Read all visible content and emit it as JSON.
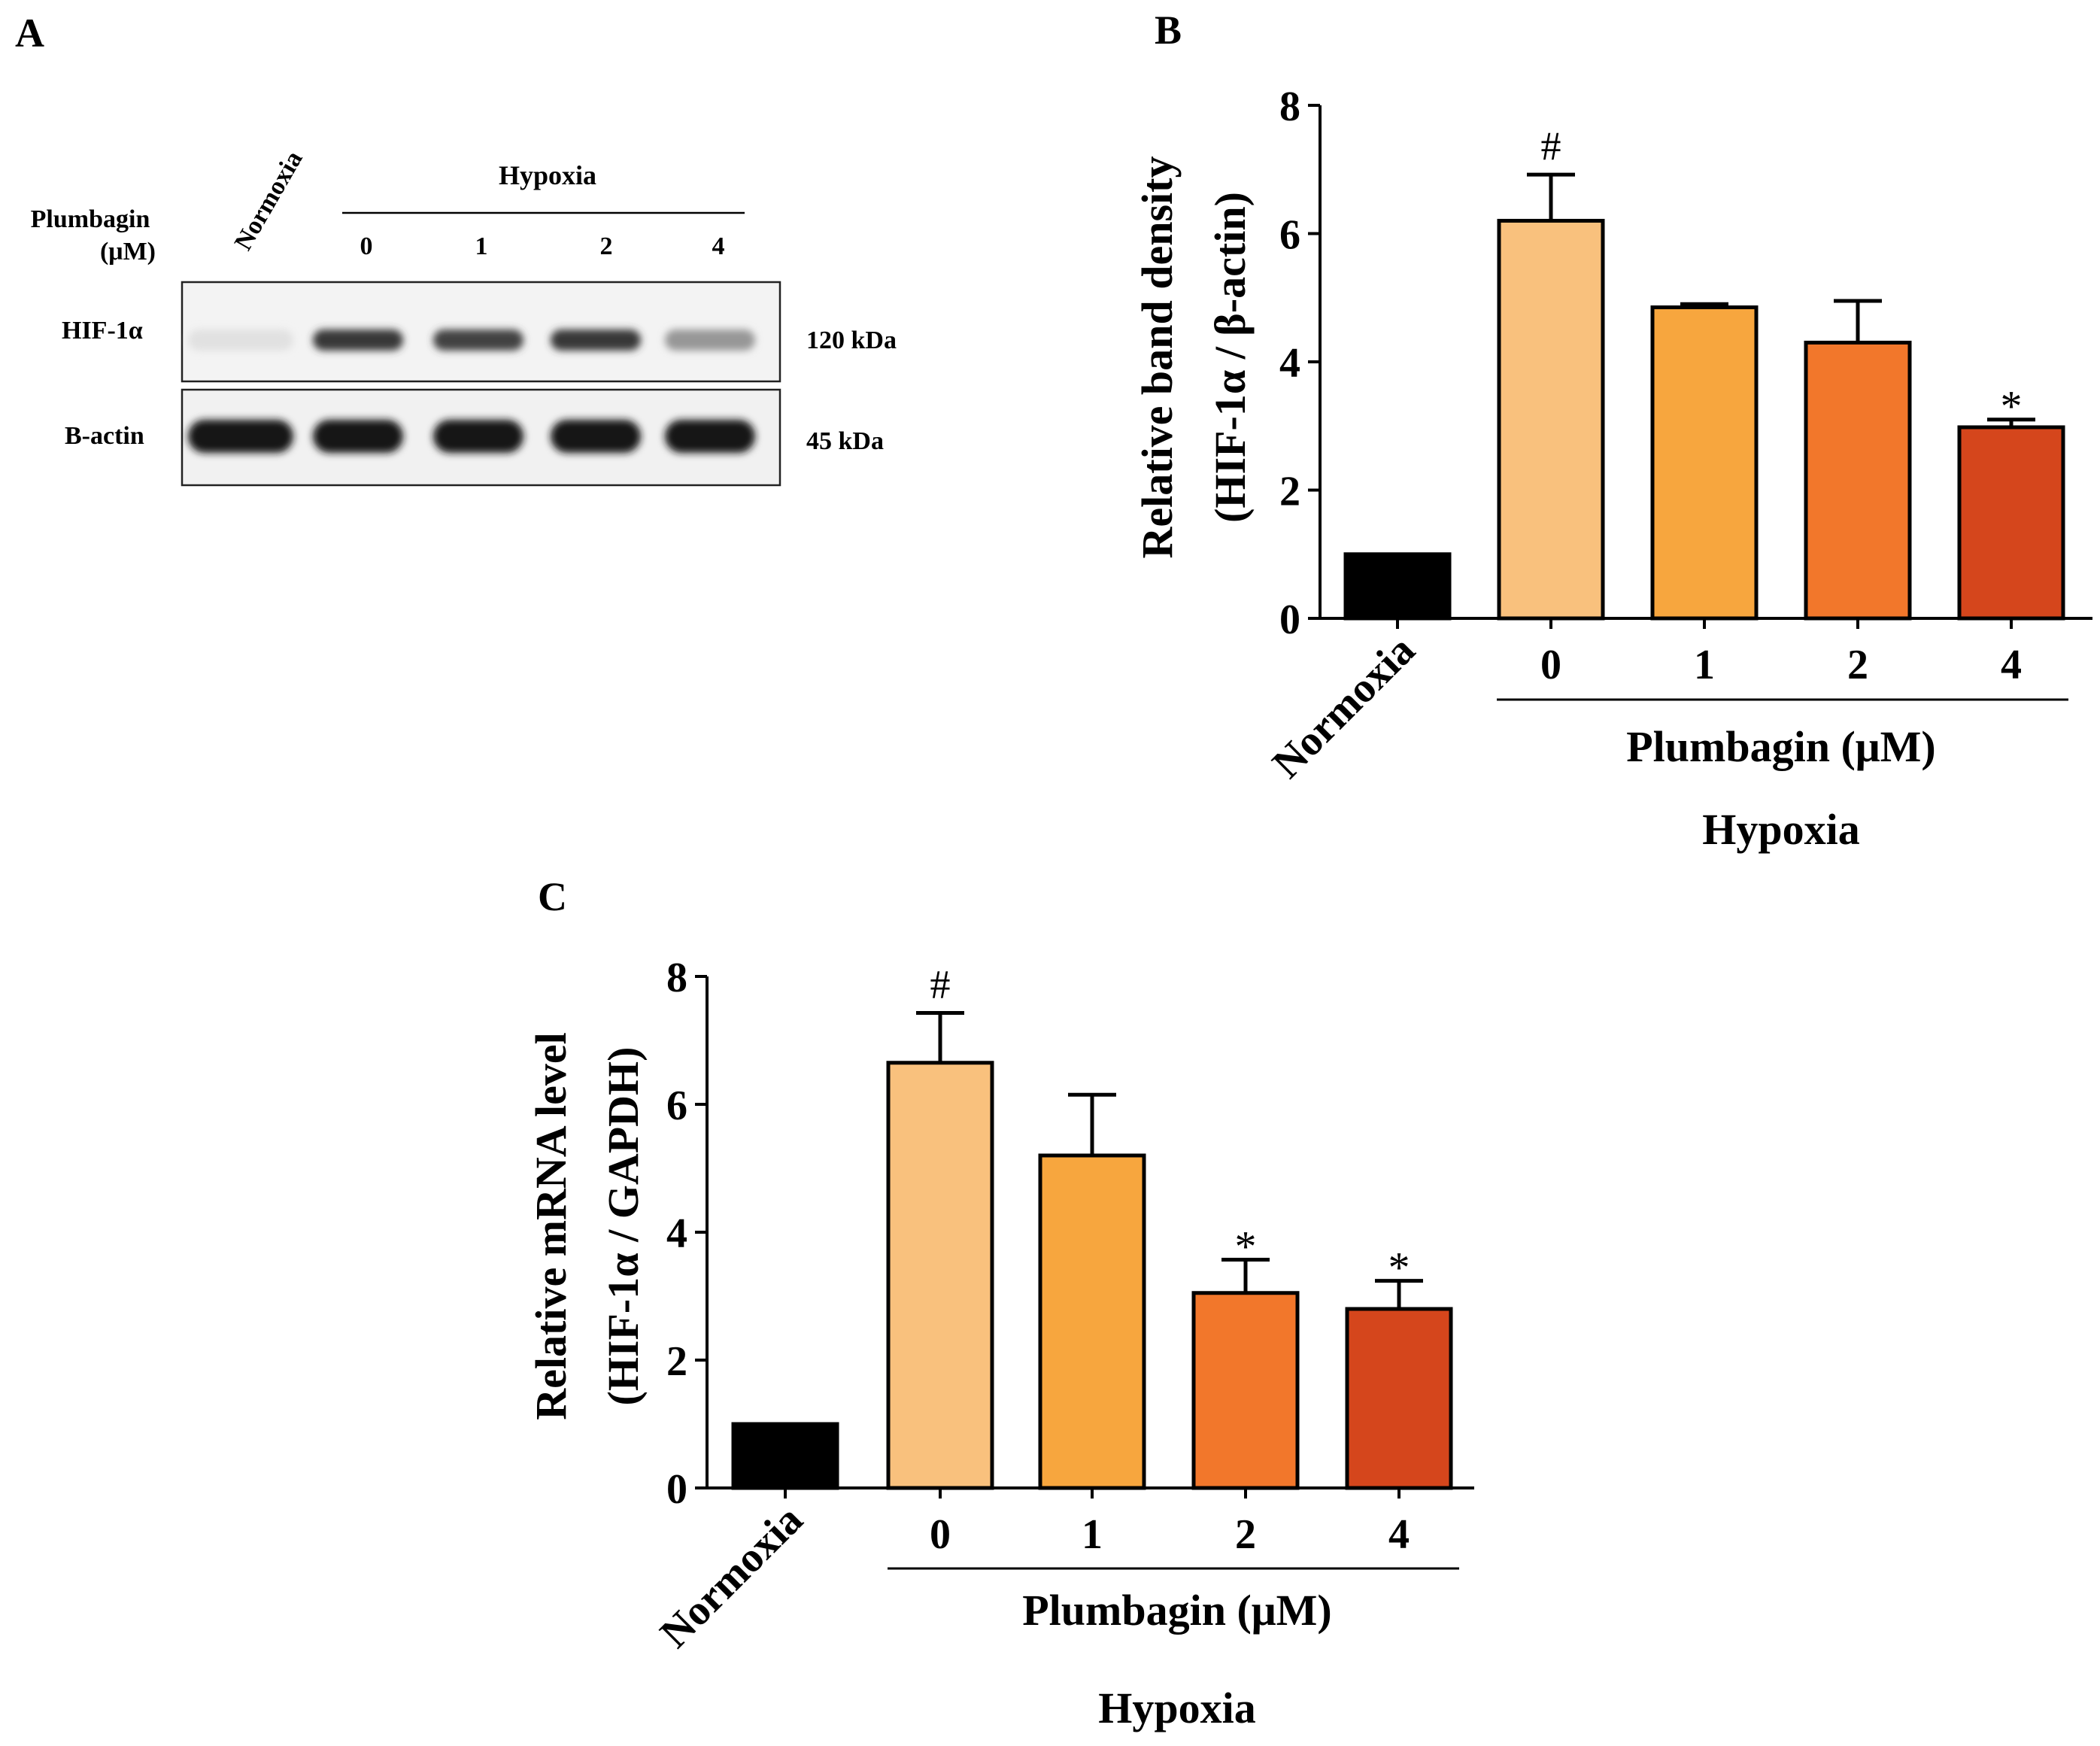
{
  "panel_a": {
    "label": "A",
    "treatment_label_line1": "Plumbagin",
    "treatment_label_line2": "(μM)",
    "normoxia_label": "Normoxia",
    "hypoxia_label": "Hypoxia",
    "doses": [
      "0",
      "1",
      "2",
      "4"
    ],
    "rows": [
      {
        "name": "HIF-1α",
        "mw": "120 kDa",
        "band_intensity": [
          0.05,
          0.85,
          0.8,
          0.85,
          0.4
        ]
      },
      {
        "name": "B-actin",
        "mw": "45 kDa",
        "band_intensity": [
          1,
          1,
          1,
          1,
          1
        ]
      }
    ]
  },
  "chart_data": [
    {
      "panel": "B",
      "type": "bar",
      "ylabel_line1": "Relative band density",
      "ylabel_line2": "(HIF-1α / β-actin)",
      "ylim": [
        0,
        8
      ],
      "yticks": [
        "0",
        "2",
        "4",
        "6",
        "8"
      ],
      "categories": [
        "Normoxia",
        "0",
        "1",
        "2",
        "4"
      ],
      "values": [
        1.0,
        6.2,
        4.85,
        4.3,
        2.98
      ],
      "errors": [
        0,
        0.72,
        0.05,
        0.65,
        0.12
      ],
      "annotations": [
        "",
        "#",
        "",
        "",
        "*"
      ],
      "colors": [
        "#000000",
        "#f9c17d",
        "#f7a63e",
        "#f2772b",
        "#d5461c"
      ],
      "group_label": "Plumbagin (μM)",
      "condition_label": "Hypoxia"
    },
    {
      "panel": "C",
      "type": "bar",
      "ylabel_line1": "Relative mRNA level",
      "ylabel_line2": "(HIF-1α / GAPDH)",
      "ylim": [
        0,
        8
      ],
      "yticks": [
        "0",
        "2",
        "4",
        "6",
        "8"
      ],
      "categories": [
        "Normoxia",
        "0",
        "1",
        "2",
        "4"
      ],
      "values": [
        1.0,
        6.65,
        5.2,
        3.05,
        2.8
      ],
      "errors": [
        0,
        0.78,
        0.95,
        0.52,
        0.44
      ],
      "annotations": [
        "",
        "#",
        "",
        "*",
        "*"
      ],
      "colors": [
        "#000000",
        "#f9c17d",
        "#f7a63e",
        "#f2772b",
        "#d5461c"
      ],
      "group_label": "Plumbagin (μM)",
      "condition_label": "Hypoxia"
    }
  ]
}
